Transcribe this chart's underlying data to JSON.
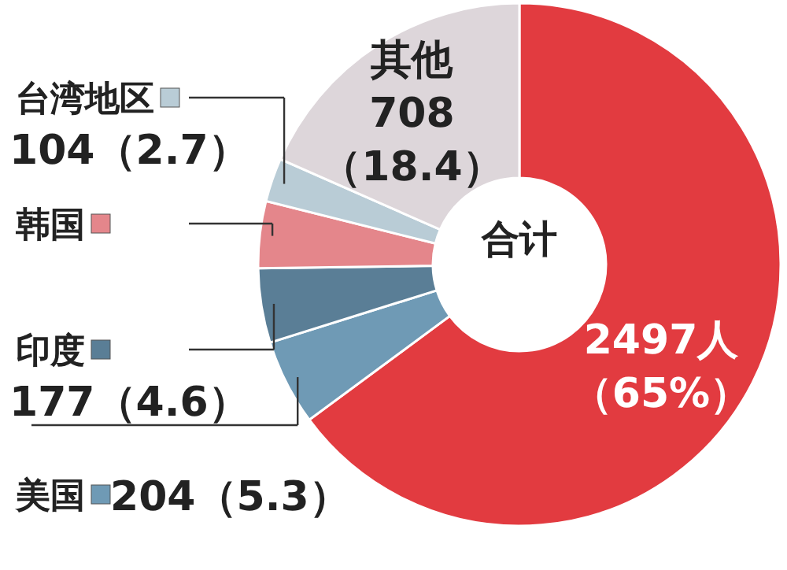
{
  "chart_data": {
    "type": "donut",
    "categories": [
      null,
      "美国",
      "印度",
      "韩国",
      "台湾地区",
      "其他"
    ],
    "values": [
      2497,
      204,
      177,
      159,
      104,
      708
    ],
    "value_labels": [
      "2497人（65%）",
      "204（5.3）",
      "177（4.6）",
      null,
      "104（2.7）",
      "708（18.4）"
    ],
    "colors": [
      "#e23b40",
      "#6f9ab5",
      "#5a7e96",
      "#e4868b",
      "#b9ccd6",
      "#ddd6da"
    ],
    "legend": "left",
    "annotations": [
      "合计"
    ]
  }
}
